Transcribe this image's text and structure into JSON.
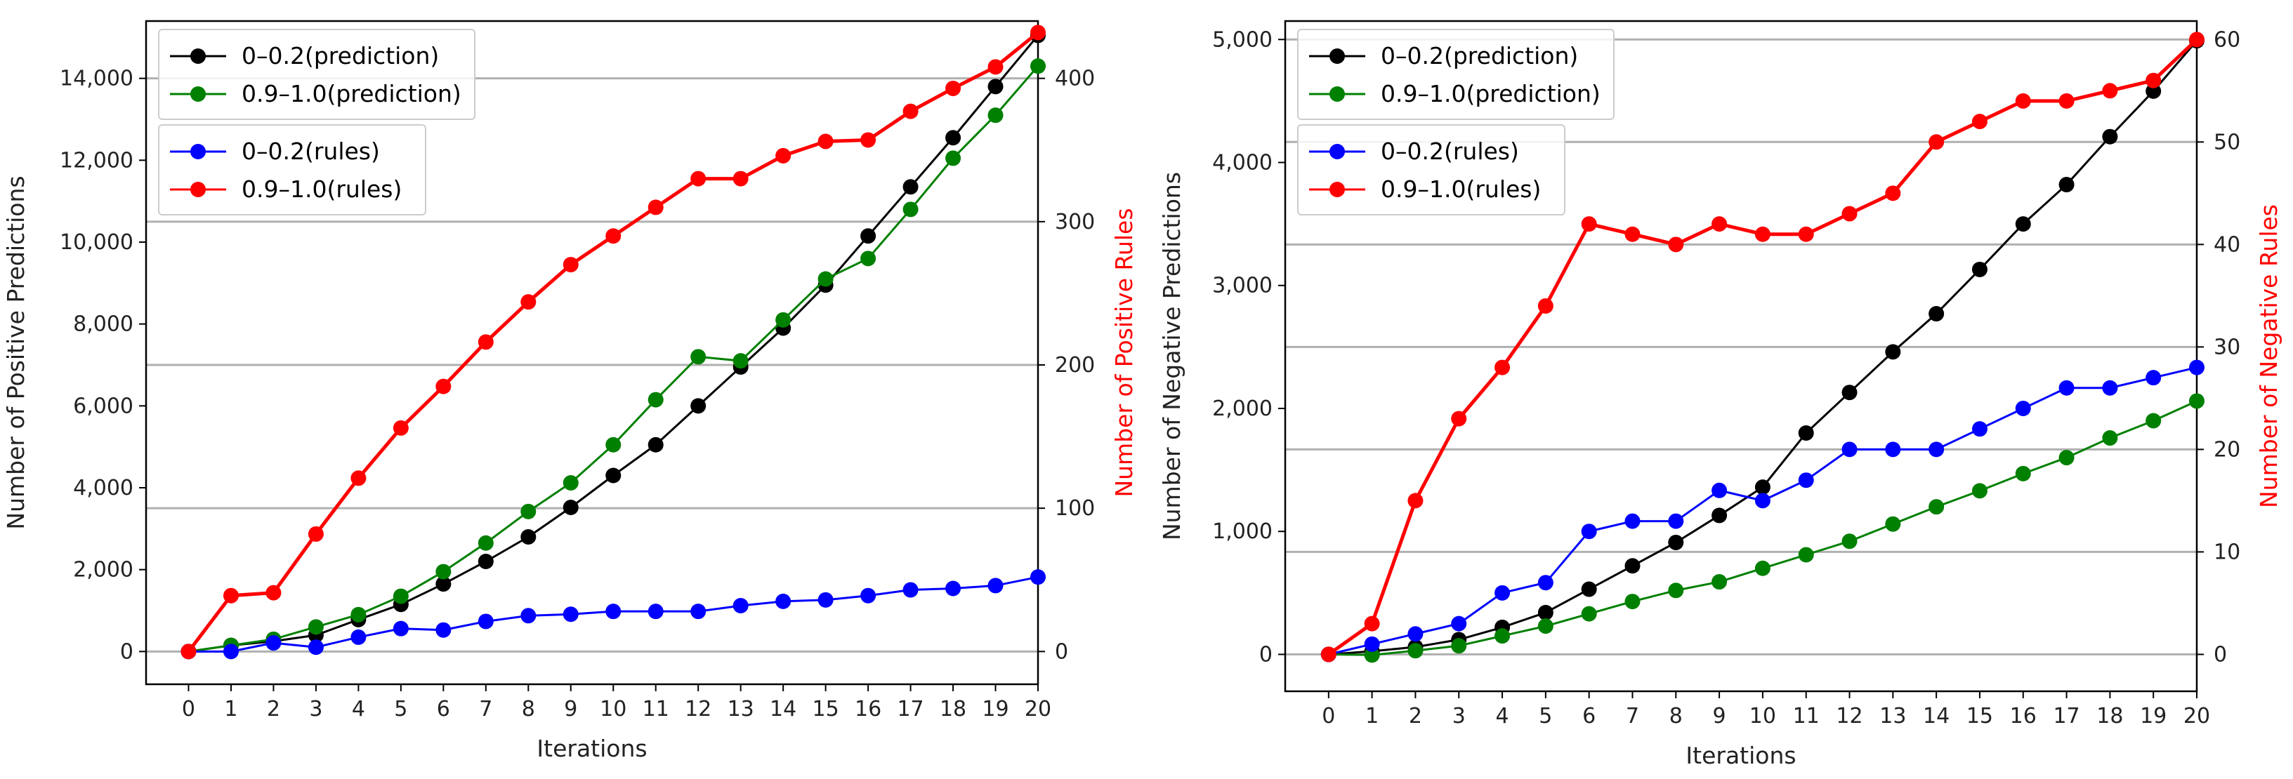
{
  "chart_data": [
    {
      "type": "line",
      "xlabel": "Iterations",
      "ylabel_left": "Number of Positive Predictions",
      "ylabel_right": "Number of Positive Rules",
      "ylabel_right_color": "#ff0000",
      "x": [
        0,
        1,
        2,
        3,
        4,
        5,
        6,
        7,
        8,
        9,
        10,
        11,
        12,
        13,
        14,
        15,
        16,
        17,
        18,
        19,
        20
      ],
      "xlim": [
        -1,
        20
      ],
      "ylim_left": [
        -800,
        15400
      ],
      "ylim_right": [
        -22.86,
        440
      ],
      "yticks_left": [
        0,
        2000,
        4000,
        6000,
        8000,
        10000,
        12000,
        14000
      ],
      "yticks_left_labels": [
        "0",
        "2,000",
        "4,000",
        "6,000",
        "8,000",
        "10,000",
        "12,000",
        "14,000"
      ],
      "yticks_right": [
        0,
        100,
        200,
        300,
        400
      ],
      "yticks_right_labels": [
        "0",
        "100",
        "200",
        "300",
        "400"
      ],
      "gridlines_right": [
        100,
        200,
        300,
        400
      ],
      "series_left": [
        {
          "name": "0–0.2(prediction)",
          "color": "#000000",
          "values": [
            0,
            150,
            250,
            400,
            780,
            1150,
            1650,
            2200,
            2800,
            3520,
            4300,
            5050,
            6000,
            6950,
            7900,
            8950,
            10150,
            11350,
            12550,
            13800,
            15050
          ]
        },
        {
          "name": "0.9–1.0(prediction)",
          "color": "#008000",
          "values": [
            0,
            150,
            300,
            600,
            900,
            1350,
            1950,
            2650,
            3420,
            4120,
            5050,
            6150,
            7200,
            7100,
            8100,
            9100,
            9600,
            10800,
            12050,
            13100,
            14300
          ]
        }
      ],
      "series_right": [
        {
          "name": "0–0.2(rules)",
          "color": "#0000ff",
          "values": [
            0,
            0,
            6,
            3,
            10,
            16,
            15,
            21,
            25,
            26,
            28,
            28,
            28,
            32,
            35,
            36,
            39,
            43,
            44,
            46,
            52
          ]
        },
        {
          "name": "0.9–1.0(rules)",
          "color": "#ff0000",
          "values": [
            0,
            39,
            41,
            82,
            121,
            156,
            185,
            216,
            244,
            270,
            290,
            310,
            330,
            330,
            346,
            356,
            357,
            377,
            393,
            408,
            432
          ]
        }
      ],
      "legend1": [
        "0–0.2(prediction)",
        "0.9–1.0(prediction)"
      ],
      "legend2": [
        "0–0.2(rules)",
        "0.9–1.0(rules)"
      ]
    },
    {
      "type": "line",
      "xlabel": "Iterations",
      "ylabel_left": "Number of Negative Predictions",
      "ylabel_right": "Number of Negative Rules",
      "ylabel_right_color": "#ff0000",
      "x": [
        0,
        1,
        2,
        3,
        4,
        5,
        6,
        7,
        8,
        9,
        10,
        11,
        12,
        13,
        14,
        15,
        16,
        17,
        18,
        19,
        20
      ],
      "xlim": [
        -1,
        20
      ],
      "ylim_left": [
        -300,
        5150
      ],
      "ylim_right": [
        -3.6,
        61.8
      ],
      "yticks_left": [
        0,
        1000,
        2000,
        3000,
        4000,
        5000
      ],
      "yticks_left_labels": [
        "0",
        "1,000",
        "2,000",
        "3,000",
        "4,000",
        "5,000"
      ],
      "yticks_right": [
        0,
        10,
        20,
        30,
        40,
        50,
        60
      ],
      "yticks_right_labels": [
        "0",
        "10",
        "20",
        "30",
        "40",
        "50",
        "60"
      ],
      "gridlines_right": [
        10,
        20,
        30,
        40,
        50,
        60
      ],
      "series_left": [
        {
          "name": "0–0.2(prediction)",
          "color": "#000000",
          "values": [
            0,
            25,
            60,
            120,
            220,
            340,
            530,
            720,
            910,
            1130,
            1360,
            1800,
            2130,
            2460,
            2770,
            3130,
            3500,
            3820,
            4210,
            4580,
            4990
          ]
        },
        {
          "name": "0.9–1.0(prediction)",
          "color": "#008000",
          "values": [
            0,
            -5,
            30,
            70,
            150,
            230,
            330,
            430,
            520,
            590,
            700,
            810,
            920,
            1060,
            1200,
            1330,
            1470,
            1600,
            1760,
            1900,
            2060
          ]
        }
      ],
      "series_right": [
        {
          "name": "0–0.2(rules)",
          "color": "#0000ff",
          "values": [
            0,
            1,
            2,
            3,
            6,
            7,
            12,
            13,
            13,
            16,
            15,
            17,
            20,
            20,
            20,
            22,
            24,
            26,
            26,
            27,
            28
          ]
        },
        {
          "name": "0.9–1.0(rules)",
          "color": "#ff0000",
          "values": [
            0,
            3,
            15,
            23,
            28,
            34,
            42,
            41,
            40,
            42,
            41,
            41,
            43,
            45,
            50,
            52,
            54,
            54,
            55,
            56,
            60
          ]
        }
      ],
      "legend1": [
        "0–0.2(prediction)",
        "0.9–1.0(prediction)"
      ],
      "legend2": [
        "0–0.2(rules)",
        "0.9–1.0(rules)"
      ]
    }
  ]
}
